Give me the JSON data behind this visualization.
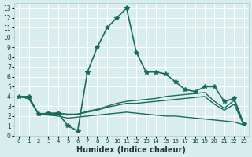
{
  "xlabel": "Humidex (Indice chaleur)",
  "background_color": "#d8eeee",
  "grid_color": "#ffffff",
  "line_color": "#1a6b5a",
  "x_ticks": [
    0,
    1,
    2,
    3,
    4,
    5,
    6,
    7,
    8,
    9,
    10,
    11,
    12,
    13,
    14,
    15,
    16,
    17,
    18,
    19,
    20,
    21,
    22,
    23
  ],
  "y_ticks": [
    0,
    1,
    2,
    3,
    4,
    5,
    6,
    7,
    8,
    9,
    10,
    11,
    12,
    13
  ],
  "xlim": [
    -0.5,
    23.5
  ],
  "ylim": [
    0,
    13.5
  ],
  "series": [
    {
      "x": [
        0,
        1,
        2,
        3,
        4,
        5,
        6,
        7,
        8,
        9,
        10,
        11,
        12,
        13,
        14,
        15,
        16,
        17,
        18,
        19,
        20,
        21,
        22,
        23
      ],
      "y": [
        4.0,
        4.0,
        2.2,
        2.3,
        2.3,
        1.0,
        0.5,
        6.5,
        9.0,
        11.0,
        12.0,
        13.0,
        8.5,
        6.5,
        6.5,
        6.3,
        5.5,
        4.7,
        4.5,
        5.0,
        5.0,
        3.5,
        3.8,
        1.2
      ],
      "marker": "*",
      "linewidth": 1.2
    },
    {
      "x": [
        0,
        1,
        2,
        3,
        4,
        5,
        6,
        7,
        8,
        9,
        10,
        11,
        12,
        13,
        14,
        15,
        16,
        17,
        18,
        19,
        20,
        21,
        22,
        23
      ],
      "y": [
        4.0,
        3.8,
        2.2,
        2.2,
        2.3,
        2.2,
        2.2,
        2.5,
        2.7,
        3.0,
        3.3,
        3.5,
        3.6,
        3.7,
        3.8,
        4.0,
        4.1,
        4.2,
        4.3,
        4.4,
        3.5,
        2.8,
        3.6,
        1.1
      ],
      "marker": null,
      "linewidth": 1.0
    },
    {
      "x": [
        0,
        1,
        2,
        3,
        4,
        5,
        6,
        7,
        8,
        9,
        10,
        11,
        12,
        13,
        14,
        15,
        16,
        17,
        18,
        19,
        20,
        21,
        22,
        23
      ],
      "y": [
        4.0,
        3.8,
        2.2,
        2.2,
        2.2,
        2.1,
        2.2,
        2.4,
        2.6,
        2.9,
        3.1,
        3.3,
        3.3,
        3.4,
        3.5,
        3.6,
        3.7,
        3.8,
        3.9,
        4.0,
        3.2,
        2.6,
        3.2,
        1.1
      ],
      "marker": null,
      "linewidth": 1.0
    },
    {
      "x": [
        0,
        1,
        2,
        3,
        4,
        5,
        6,
        7,
        8,
        9,
        10,
        11,
        12,
        13,
        14,
        15,
        16,
        17,
        18,
        19,
        20,
        21,
        22,
        23
      ],
      "y": [
        4.0,
        3.8,
        2.2,
        2.1,
        2.0,
        1.8,
        1.9,
        2.0,
        2.1,
        2.2,
        2.3,
        2.4,
        2.3,
        2.2,
        2.1,
        2.0,
        2.0,
        1.9,
        1.8,
        1.7,
        1.6,
        1.5,
        1.4,
        1.1
      ],
      "marker": null,
      "linewidth": 1.0
    }
  ]
}
